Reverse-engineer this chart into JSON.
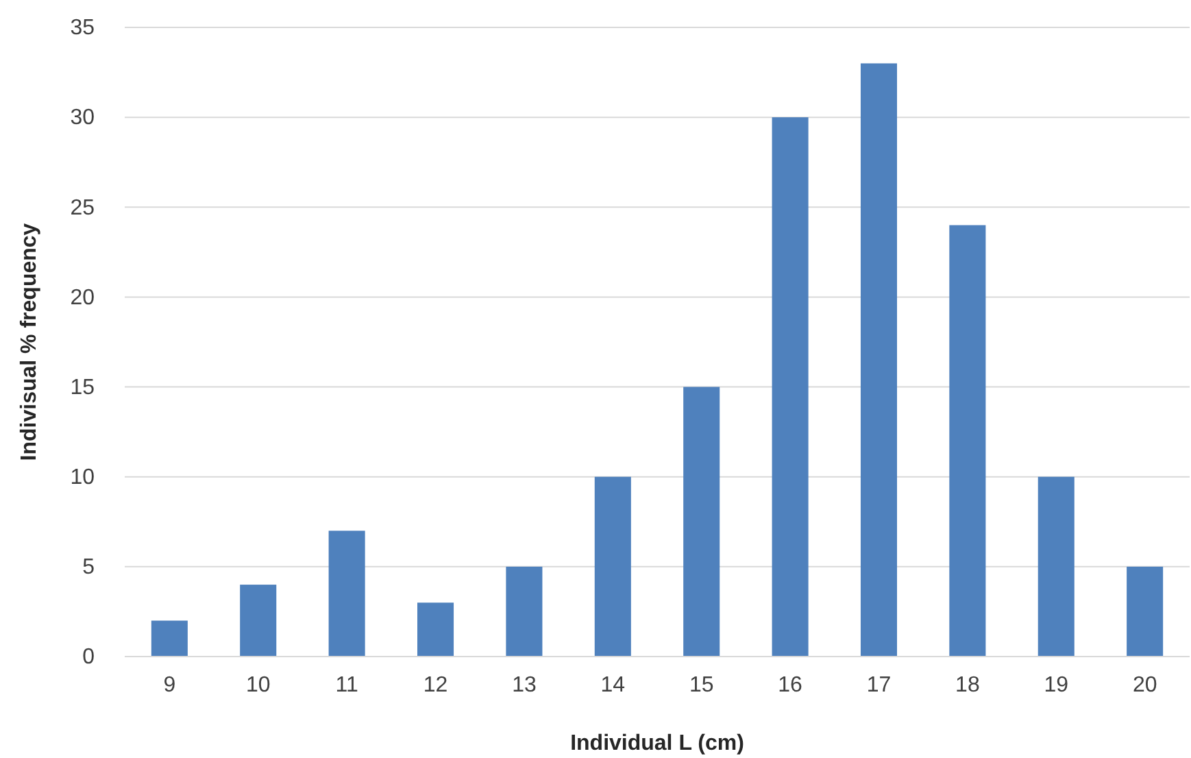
{
  "chart_data": {
    "type": "bar",
    "xlabel": "Individual L (cm)",
    "ylabel": "Indivisual % frequency",
    "categories": [
      "9",
      "10",
      "11",
      "12",
      "13",
      "14",
      "15",
      "16",
      "17",
      "18",
      "19",
      "20"
    ],
    "values": [
      2,
      4,
      7,
      3,
      5,
      10,
      15,
      30,
      33,
      24,
      10,
      5
    ],
    "color": "#4f81bd",
    "ylim": [
      0,
      35
    ],
    "yticks": [
      0,
      5,
      10,
      15,
      20,
      25,
      30,
      35
    ],
    "grid": "y"
  }
}
